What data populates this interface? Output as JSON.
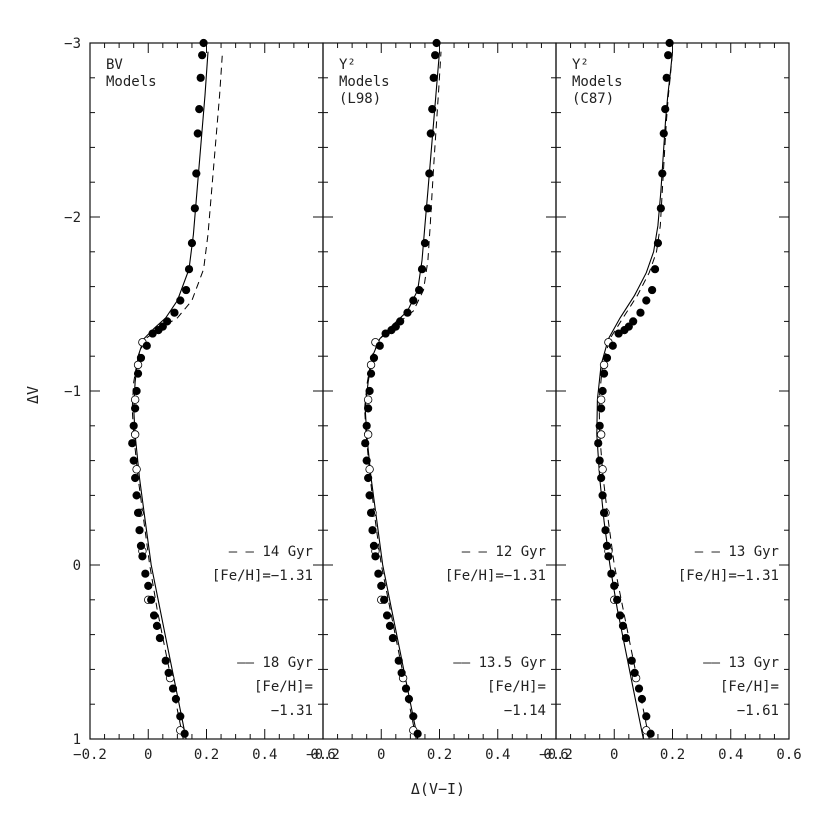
{
  "chart_data": {
    "type": "scatter",
    "xlabel": "Δ(V−I)",
    "ylabel": "ΔV",
    "xlim": [
      -0.2,
      0.6
    ],
    "ylim": [
      1,
      -3
    ],
    "y_inverted": true,
    "yticks": [
      "−3",
      "−2",
      "−1",
      "0",
      "1"
    ],
    "yticks_values": [
      -3,
      -2,
      -1,
      0,
      1
    ],
    "xticks": [
      "−0.2",
      "0",
      "0.2",
      "0.4",
      "0.6"
    ],
    "xticks_values": [
      -0.2,
      0,
      0.2,
      0.4,
      0.6
    ],
    "panels": [
      {
        "title_lines": [
          "BV",
          "Models"
        ],
        "dashed_legend": [
          "– – 14 Gyr",
          "[Fe/H]=−1.31"
        ],
        "solid_legend": [
          "—— 18 Gyr",
          "[Fe/H]=",
          "−1.31"
        ],
        "solid_model": {
          "x": [
            0.13,
            0.1,
            0.07,
            0.04,
            0.01,
            -0.01,
            -0.03,
            -0.045,
            -0.05,
            -0.045,
            -0.035,
            -0.015,
            0.02,
            0.06,
            0.1,
            0.14,
            0.155,
            0.165,
            0.175,
            0.185,
            0.195,
            0.205
          ],
          "y": [
            1.0,
            0.75,
            0.5,
            0.25,
            0.0,
            -0.25,
            -0.5,
            -0.75,
            -0.9,
            -1.05,
            -1.2,
            -1.3,
            -1.36,
            -1.42,
            -1.52,
            -1.7,
            -1.9,
            -2.1,
            -2.3,
            -2.5,
            -2.7,
            -2.95
          ]
        },
        "dashed_model": {
          "x": [
            0.12,
            0.09,
            0.06,
            0.03,
            0.005,
            -0.015,
            -0.035,
            -0.05,
            -0.055,
            -0.05,
            -0.035,
            -0.01,
            0.04,
            0.1,
            0.15,
            0.19,
            0.205,
            0.215,
            0.225,
            0.235,
            0.245,
            0.255
          ],
          "y": [
            1.0,
            0.75,
            0.5,
            0.25,
            0.0,
            -0.25,
            -0.5,
            -0.75,
            -0.9,
            -1.05,
            -1.2,
            -1.3,
            -1.36,
            -1.42,
            -1.52,
            -1.7,
            -1.9,
            -2.1,
            -2.3,
            -2.5,
            -2.7,
            -2.95
          ]
        }
      },
      {
        "title_lines": [
          "Y²",
          "Models",
          "(L98)"
        ],
        "dashed_legend": [
          "– – 12 Gyr",
          "[Fe/H]=−1.31"
        ],
        "solid_legend": [
          "—— 13.5 Gyr",
          "[Fe/H]=",
          "−1.14"
        ],
        "solid_model": {
          "x": [
            0.125,
            0.095,
            0.065,
            0.035,
            0.005,
            -0.015,
            -0.035,
            -0.05,
            -0.055,
            -0.045,
            -0.03,
            -0.005,
            0.04,
            0.09,
            0.125,
            0.14,
            0.15,
            0.16,
            0.17,
            0.18,
            0.19,
            0.2
          ],
          "y": [
            1.0,
            0.75,
            0.5,
            0.25,
            0.0,
            -0.25,
            -0.5,
            -0.75,
            -0.9,
            -1.05,
            -1.2,
            -1.3,
            -1.38,
            -1.46,
            -1.58,
            -1.75,
            -1.95,
            -2.15,
            -2.35,
            -2.55,
            -2.75,
            -2.95
          ]
        },
        "dashed_model": {
          "x": [
            0.12,
            0.09,
            0.06,
            0.03,
            0.0,
            -0.02,
            -0.038,
            -0.052,
            -0.057,
            -0.048,
            -0.032,
            -0.005,
            0.05,
            0.11,
            0.145,
            0.16,
            0.168,
            0.175,
            0.182,
            0.19,
            0.198,
            0.205
          ],
          "y": [
            1.0,
            0.75,
            0.5,
            0.25,
            0.0,
            -0.25,
            -0.5,
            -0.75,
            -0.9,
            -1.05,
            -1.2,
            -1.3,
            -1.38,
            -1.46,
            -1.58,
            -1.75,
            -1.95,
            -2.15,
            -2.35,
            -2.55,
            -2.75,
            -2.95
          ]
        }
      },
      {
        "title_lines": [
          "Y²",
          "Models",
          "(C87)"
        ],
        "dashed_legend": [
          "– – 13 Gyr",
          "[Fe/H]=−1.31"
        ],
        "solid_legend": [
          "—— 13 Gyr",
          "[Fe/H]=",
          "−1.61"
        ],
        "solid_model": {
          "x": [
            0.1,
            0.07,
            0.04,
            0.01,
            -0.015,
            -0.035,
            -0.05,
            -0.06,
            -0.058,
            -0.045,
            -0.02,
            0.02,
            0.07,
            0.11,
            0.135,
            0.15,
            0.16,
            0.168,
            0.176,
            0.184,
            0.192,
            0.2
          ],
          "y": [
            1.0,
            0.75,
            0.5,
            0.25,
            0.0,
            -0.25,
            -0.5,
            -0.75,
            -0.95,
            -1.15,
            -1.3,
            -1.42,
            -1.55,
            -1.68,
            -1.8,
            -1.95,
            -2.15,
            -2.35,
            -2.55,
            -2.7,
            -2.82,
            -2.95
          ]
        },
        "dashed_model": {
          "x": [
            0.12,
            0.09,
            0.06,
            0.03,
            0.0,
            -0.02,
            -0.038,
            -0.05,
            -0.052,
            -0.04,
            -0.015,
            0.03,
            0.08,
            0.12,
            0.145,
            0.158,
            0.165,
            0.172,
            0.179,
            0.186,
            0.193,
            0.2
          ],
          "y": [
            1.0,
            0.75,
            0.5,
            0.25,
            0.0,
            -0.25,
            -0.5,
            -0.75,
            -0.95,
            -1.15,
            -1.3,
            -1.42,
            -1.55,
            -1.68,
            -1.8,
            -1.95,
            -2.15,
            -2.35,
            -2.55,
            -2.7,
            -2.82,
            -2.95
          ]
        }
      }
    ],
    "observed_points": {
      "filled": {
        "x": [
          0.125,
          0.11,
          0.095,
          0.085,
          0.07,
          0.06,
          0.04,
          0.03,
          0.02,
          0.01,
          0.0,
          -0.01,
          -0.02,
          -0.025,
          -0.03,
          -0.035,
          -0.04,
          -0.045,
          -0.05,
          -0.055,
          -0.05,
          -0.045,
          -0.04,
          -0.035,
          -0.025,
          -0.005,
          0.015,
          0.035,
          0.05,
          0.065,
          0.09,
          0.11,
          0.13,
          0.14,
          0.15,
          0.16,
          0.165,
          0.17,
          0.175,
          0.18,
          0.185,
          0.19
        ],
        "y": [
          0.97,
          0.87,
          0.77,
          0.71,
          0.62,
          0.55,
          0.42,
          0.35,
          0.29,
          0.2,
          0.12,
          0.05,
          -0.05,
          -0.11,
          -0.2,
          -0.3,
          -0.4,
          -0.5,
          -0.6,
          -0.7,
          -0.8,
          -0.9,
          -1.0,
          -1.1,
          -1.19,
          -1.26,
          -1.33,
          -1.35,
          -1.37,
          -1.4,
          -1.45,
          -1.52,
          -1.58,
          -1.7,
          -1.85,
          -2.05,
          -2.25,
          -2.48,
          -2.62,
          -2.8,
          -2.93,
          -3.0
        ]
      },
      "open": {
        "x": [
          0.11,
          0.075,
          0.0,
          -0.02,
          -0.03,
          -0.04,
          -0.045,
          -0.045,
          -0.035,
          -0.02
        ],
        "y": [
          0.95,
          0.65,
          0.2,
          -0.08,
          -0.3,
          -0.55,
          -0.75,
          -0.95,
          -1.15,
          -1.28
        ]
      }
    }
  }
}
